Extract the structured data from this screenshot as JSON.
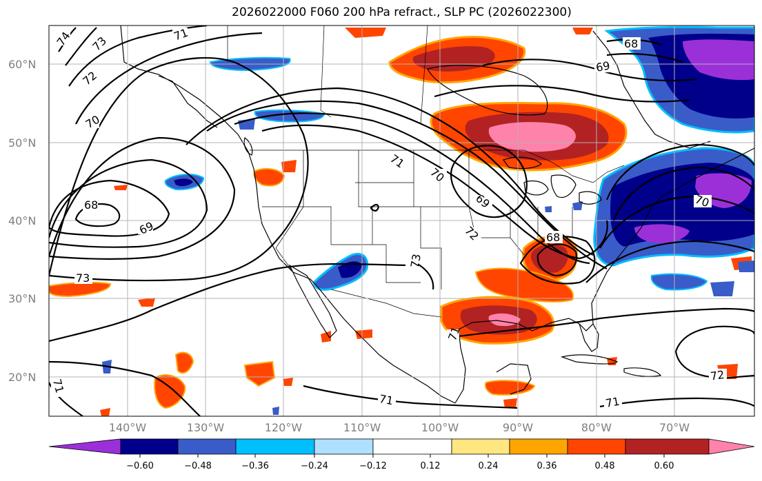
{
  "title": "2026022000 F060 200 hPa refract., SLP PC (2026022300)",
  "lat_labels": [
    "60°N",
    "50°N",
    "40°N",
    "30°N",
    "20°N"
  ],
  "lon_labels": [
    "140°W",
    "130°W",
    "120°W",
    "110°W",
    "100°W",
    "90°W",
    "80°W",
    "70°W"
  ],
  "colorbar": {
    "ticks": [
      "−0.60",
      "−0.48",
      "−0.36",
      "−0.24",
      "−0.12",
      "0.12",
      "0.24",
      "0.36",
      "0.48",
      "0.60"
    ],
    "colors": [
      "#9b30d8",
      "#00008b",
      "#3a5cc9",
      "#00bfff",
      "#b0e0ff",
      "#ffffff",
      "#ffe680",
      "#ffa500",
      "#ff4500",
      "#b22222",
      "#ff82ab"
    ]
  },
  "contour_labels": [
    "74",
    "73",
    "72",
    "71",
    "70",
    "68",
    "69",
    "73",
    "68",
    "69",
    "71",
    "70",
    "69",
    "72",
    "73",
    "68",
    "71",
    "71",
    "71",
    "72",
    "70",
    "71"
  ],
  "colors": {
    "pos_high": "#ff82ab",
    "pos_med_high": "#b22222",
    "pos_med": "#ff4500",
    "pos_low": "#ffa500",
    "pos_lowest": "#ffe680",
    "neg_high": "#9b30d8",
    "neg_med_high": "#00008b",
    "neg_med": "#3a5cc9",
    "neg_low": "#00bfff",
    "neg_lowest": "#b0e0ff"
  }
}
